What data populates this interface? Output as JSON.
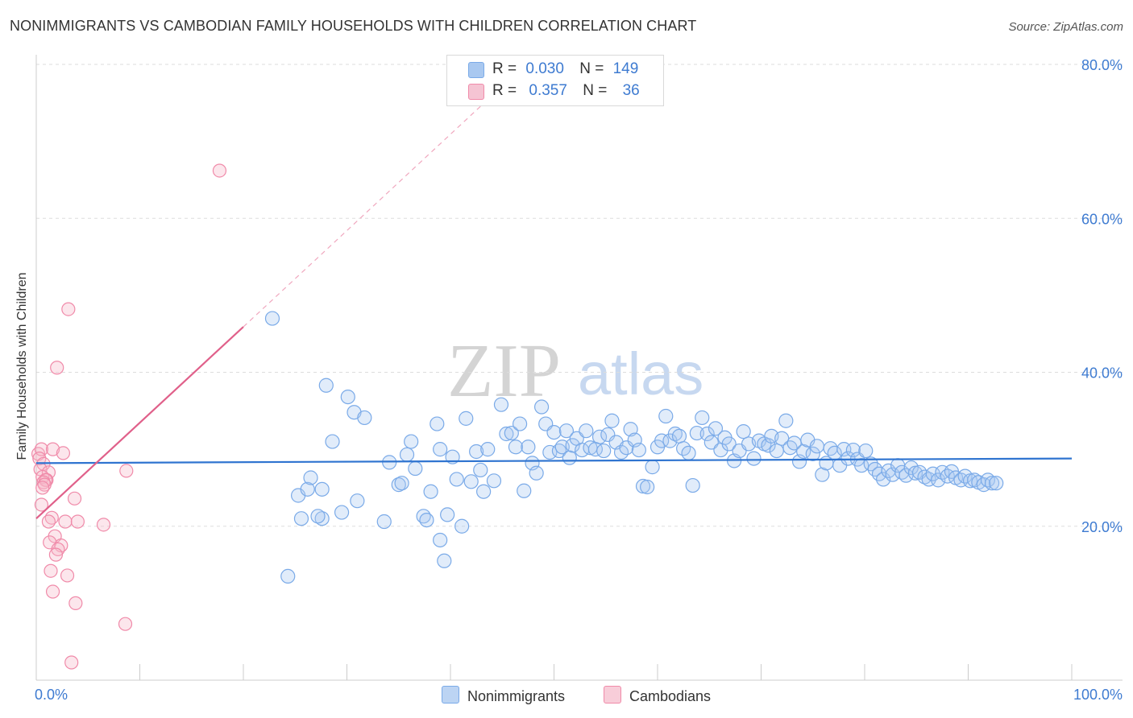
{
  "title": "NONIMMIGRANTS VS CAMBODIAN FAMILY HOUSEHOLDS WITH CHILDREN CORRELATION CHART",
  "source": "Source: ZipAtlas.com",
  "watermark": {
    "zip": "ZIP",
    "atlas": "atlas"
  },
  "legend": {
    "rows": [
      {
        "r_label": "R =",
        "r_value": "0.030",
        "n_label": "N =",
        "n_value": "149",
        "color": "#a9c8f0"
      },
      {
        "r_label": "R =",
        "r_value": "0.357",
        "n_label": "N =",
        "n_value": "36",
        "color": "#f5b8c9"
      }
    ]
  },
  "bottom_legend": {
    "items": [
      {
        "label": "Nonimmigrants",
        "color": "#a9c8f0"
      },
      {
        "label": "Cambodians",
        "color": "#f5b8c9"
      }
    ]
  },
  "chart_data": {
    "type": "scatter",
    "title": "NONIMMIGRANTS VS CAMBODIAN FAMILY HOUSEHOLDS WITH CHILDREN CORRELATION CHART",
    "xlabel": "",
    "ylabel": "Family Households with Children",
    "xlim": [
      0,
      100
    ],
    "ylim": [
      0,
      80
    ],
    "x_tick_labels": [
      "0.0%",
      "100.0%"
    ],
    "y_ticks": [
      20,
      40,
      60,
      80
    ],
    "y_tick_labels": [
      "20.0%",
      "40.0%",
      "60.0%",
      "80.0%"
    ],
    "grid": true,
    "series": [
      {
        "name": "Nonimmigrants",
        "color": "#7aaae8",
        "fill": "rgba(169,200,240,0.35)",
        "r": 0.03,
        "n": 149,
        "trendline": {
          "x": [
            0,
            100
          ],
          "y": [
            28.2,
            28.8
          ]
        },
        "points": [
          [
            22.8,
            47.0
          ],
          [
            27.6,
            21.0
          ],
          [
            24.3,
            13.5
          ],
          [
            25.3,
            24.0
          ],
          [
            26.2,
            24.8
          ],
          [
            26.5,
            26.3
          ],
          [
            25.6,
            21.0
          ],
          [
            27.2,
            21.3
          ],
          [
            27.6,
            24.8
          ],
          [
            28.0,
            38.3
          ],
          [
            28.6,
            31.0
          ],
          [
            29.5,
            21.8
          ],
          [
            30.1,
            36.8
          ],
          [
            30.7,
            34.8
          ],
          [
            31.0,
            23.3
          ],
          [
            31.7,
            34.1
          ],
          [
            33.6,
            20.6
          ],
          [
            34.1,
            28.3
          ],
          [
            35.0,
            25.4
          ],
          [
            35.3,
            25.6
          ],
          [
            35.8,
            29.3
          ],
          [
            36.2,
            31.0
          ],
          [
            36.6,
            27.5
          ],
          [
            37.4,
            21.3
          ],
          [
            37.7,
            20.8
          ],
          [
            38.1,
            24.5
          ],
          [
            38.7,
            33.3
          ],
          [
            39.0,
            30.0
          ],
          [
            39.0,
            18.2
          ],
          [
            39.4,
            15.5
          ],
          [
            39.7,
            21.5
          ],
          [
            40.2,
            29.0
          ],
          [
            40.6,
            26.1
          ],
          [
            41.1,
            20.0
          ],
          [
            41.5,
            34.0
          ],
          [
            42.0,
            25.8
          ],
          [
            42.5,
            29.7
          ],
          [
            42.9,
            27.3
          ],
          [
            43.2,
            24.5
          ],
          [
            43.6,
            30.0
          ],
          [
            44.2,
            25.9
          ],
          [
            44.9,
            35.8
          ],
          [
            45.4,
            32.0
          ],
          [
            45.9,
            32.1
          ],
          [
            46.3,
            30.3
          ],
          [
            46.7,
            33.3
          ],
          [
            47.1,
            24.6
          ],
          [
            47.5,
            30.3
          ],
          [
            47.9,
            28.2
          ],
          [
            48.3,
            26.9
          ],
          [
            48.8,
            35.5
          ],
          [
            49.2,
            33.3
          ],
          [
            49.6,
            29.6
          ],
          [
            50.0,
            32.2
          ],
          [
            50.5,
            29.8
          ],
          [
            50.8,
            30.3
          ],
          [
            51.2,
            32.4
          ],
          [
            51.5,
            28.9
          ],
          [
            51.8,
            30.5
          ],
          [
            52.2,
            31.4
          ],
          [
            52.7,
            29.9
          ],
          [
            53.1,
            32.4
          ],
          [
            53.5,
            30.2
          ],
          [
            54.0,
            30.0
          ],
          [
            54.4,
            31.6
          ],
          [
            54.8,
            29.8
          ],
          [
            55.2,
            31.9
          ],
          [
            55.6,
            33.7
          ],
          [
            56.0,
            30.9
          ],
          [
            56.5,
            29.6
          ],
          [
            57.0,
            30.2
          ],
          [
            57.4,
            32.6
          ],
          [
            57.8,
            31.2
          ],
          [
            58.2,
            29.9
          ],
          [
            58.6,
            25.2
          ],
          [
            59.0,
            25.1
          ],
          [
            59.5,
            27.7
          ],
          [
            60.0,
            30.3
          ],
          [
            60.4,
            31.1
          ],
          [
            60.8,
            34.3
          ],
          [
            61.2,
            31.1
          ],
          [
            61.7,
            32.0
          ],
          [
            62.1,
            31.7
          ],
          [
            62.5,
            30.1
          ],
          [
            63.0,
            29.5
          ],
          [
            63.4,
            25.3
          ],
          [
            63.8,
            32.1
          ],
          [
            64.3,
            34.1
          ],
          [
            64.8,
            32.0
          ],
          [
            65.2,
            30.9
          ],
          [
            65.6,
            32.7
          ],
          [
            66.1,
            29.9
          ],
          [
            66.5,
            31.5
          ],
          [
            66.9,
            30.7
          ],
          [
            67.4,
            28.5
          ],
          [
            67.9,
            29.8
          ],
          [
            68.3,
            32.3
          ],
          [
            68.8,
            30.7
          ],
          [
            69.3,
            28.8
          ],
          [
            69.8,
            31.1
          ],
          [
            70.3,
            30.7
          ],
          [
            70.7,
            30.5
          ],
          [
            71.0,
            31.7
          ],
          [
            71.5,
            29.8
          ],
          [
            72.0,
            31.4
          ],
          [
            72.4,
            33.7
          ],
          [
            72.8,
            30.2
          ],
          [
            73.2,
            30.8
          ],
          [
            73.7,
            28.4
          ],
          [
            74.1,
            29.7
          ],
          [
            74.5,
            31.2
          ],
          [
            75.0,
            29.4
          ],
          [
            75.4,
            30.4
          ],
          [
            75.9,
            26.7
          ],
          [
            76.3,
            28.2
          ],
          [
            76.7,
            30.1
          ],
          [
            77.1,
            29.5
          ],
          [
            77.6,
            27.9
          ],
          [
            78.0,
            30.0
          ],
          [
            78.4,
            28.8
          ],
          [
            78.9,
            29.9
          ],
          [
            79.3,
            28.7
          ],
          [
            79.7,
            27.9
          ],
          [
            80.1,
            29.8
          ],
          [
            80.6,
            28.1
          ],
          [
            81.0,
            27.4
          ],
          [
            81.4,
            26.8
          ],
          [
            81.8,
            26.1
          ],
          [
            82.3,
            27.2
          ],
          [
            82.7,
            26.7
          ],
          [
            83.2,
            27.9
          ],
          [
            83.6,
            27.0
          ],
          [
            84.0,
            26.6
          ],
          [
            84.5,
            27.6
          ],
          [
            84.9,
            26.9
          ],
          [
            85.3,
            27.0
          ],
          [
            85.8,
            26.4
          ],
          [
            86.2,
            26.1
          ],
          [
            86.6,
            26.8
          ],
          [
            87.1,
            26.0
          ],
          [
            87.5,
            27.0
          ],
          [
            88.0,
            26.5
          ],
          [
            88.4,
            27.1
          ],
          [
            88.8,
            26.3
          ],
          [
            89.3,
            26.0
          ],
          [
            89.7,
            26.5
          ],
          [
            90.2,
            25.9
          ],
          [
            90.6,
            26.0
          ],
          [
            91.0,
            25.7
          ],
          [
            91.5,
            25.4
          ],
          [
            91.9,
            26.0
          ],
          [
            92.3,
            25.6
          ],
          [
            92.7,
            25.6
          ]
        ]
      },
      {
        "name": "Cambodians",
        "color": "#f08aa9",
        "fill": "rgba(245,184,201,0.35)",
        "r": 0.357,
        "n": 36,
        "trendline": {
          "x": [
            0,
            20
          ],
          "y": [
            21.0,
            45.9
          ],
          "dashed_extension_to": [
            43.5,
            75.3
          ]
        },
        "points": [
          [
            17.7,
            66.2
          ],
          [
            3.1,
            48.2
          ],
          [
            2.0,
            40.6
          ],
          [
            0.2,
            29.4
          ],
          [
            0.5,
            30.0
          ],
          [
            1.6,
            30.0
          ],
          [
            2.6,
            29.5
          ],
          [
            0.3,
            28.8
          ],
          [
            0.7,
            28.1
          ],
          [
            0.4,
            27.4
          ],
          [
            1.2,
            27.0
          ],
          [
            0.6,
            26.4
          ],
          [
            1.0,
            26.0
          ],
          [
            0.9,
            26.0
          ],
          [
            0.7,
            25.7
          ],
          [
            0.8,
            25.4
          ],
          [
            0.6,
            25.0
          ],
          [
            8.7,
            27.2
          ],
          [
            3.7,
            23.6
          ],
          [
            0.5,
            22.8
          ],
          [
            1.5,
            21.1
          ],
          [
            1.2,
            20.6
          ],
          [
            2.8,
            20.6
          ],
          [
            4.0,
            20.6
          ],
          [
            6.5,
            20.2
          ],
          [
            1.8,
            18.7
          ],
          [
            1.3,
            17.9
          ],
          [
            2.4,
            17.5
          ],
          [
            2.1,
            17.0
          ],
          [
            1.9,
            16.3
          ],
          [
            1.4,
            14.2
          ],
          [
            3.0,
            13.6
          ],
          [
            1.6,
            11.5
          ],
          [
            3.8,
            10.0
          ],
          [
            8.6,
            7.3
          ],
          [
            3.4,
            2.3
          ]
        ]
      }
    ]
  }
}
